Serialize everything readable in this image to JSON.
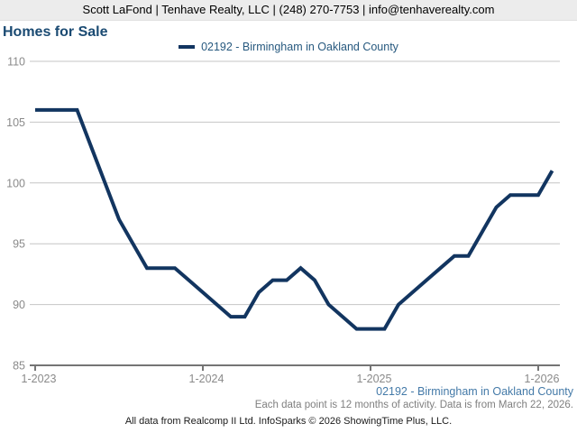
{
  "header": {
    "contact_line": "Scott LaFond | Tenhave Realty, LLC | (248) 270-7753 | info@tenhaverealty.com"
  },
  "title": "Homes for Sale",
  "legend": {
    "label": "02192 - Birmingham in Oakland County"
  },
  "footer": {
    "series_label": "02192 - Birmingham in Oakland County",
    "data_note": "Each data point is 12 months of activity. Data is from March 22, 2026.",
    "attribution": "All data from Realcomp II Ltd. InfoSparks © 2026 ShowingTime Plus, LLC."
  },
  "colors": {
    "line": "#123560",
    "title_blue": "#1a4a72",
    "legend_blue": "#27597f",
    "footer_blue": "#447aa8",
    "grid": "#c6c6c6",
    "axis": "#757575",
    "tick_label": "#8a8a8a",
    "header_bg": "#ececec"
  },
  "chart_data": {
    "type": "line",
    "title": "Homes for Sale",
    "x_unit": "month",
    "x": [
      "1-2023",
      "2-2023",
      "3-2023",
      "4-2023",
      "5-2023",
      "6-2023",
      "7-2023",
      "8-2023",
      "9-2023",
      "10-2023",
      "11-2023",
      "12-2023",
      "1-2024",
      "2-2024",
      "3-2024",
      "4-2024",
      "5-2024",
      "6-2024",
      "7-2024",
      "8-2024",
      "9-2024",
      "10-2024",
      "11-2024",
      "12-2024",
      "1-2025",
      "2-2025",
      "3-2025",
      "4-2025",
      "5-2025",
      "6-2025",
      "7-2025",
      "8-2025",
      "9-2025",
      "10-2025",
      "11-2025",
      "12-2025",
      "1-2026",
      "2-2026"
    ],
    "series": [
      {
        "name": "02192 - Birmingham in Oakland County",
        "values": [
          106,
          106,
          106,
          106,
          103,
          100,
          97,
          95,
          93,
          93,
          93,
          92,
          91,
          90,
          89,
          89,
          91,
          92,
          92,
          93,
          92,
          90,
          89,
          88,
          88,
          88,
          90,
          91,
          92,
          93,
          94,
          94,
          96,
          98,
          99,
          99,
          99,
          101
        ]
      }
    ],
    "ylim": [
      85,
      110
    ],
    "yticks": [
      85,
      90,
      95,
      100,
      105,
      110
    ],
    "xticks": [
      {
        "label": "1-2023",
        "month_index": 0
      },
      {
        "label": "1-2024",
        "month_index": 12
      },
      {
        "label": "1-2025",
        "month_index": 24
      },
      {
        "label": "1-2026",
        "month_index": 36
      }
    ],
    "grid": true,
    "legend_position": "top-center",
    "note": "Each data point is 12 months of activity. Data is from March 22, 2026."
  }
}
